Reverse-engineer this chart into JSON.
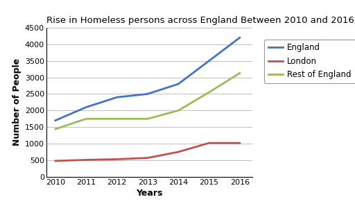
{
  "title": "Rise in Homeless persons across England Between 2010 and 2016",
  "xlabel": "Years",
  "ylabel": "Number of People",
  "years": [
    2010,
    2011,
    2012,
    2013,
    2014,
    2015,
    2016
  ],
  "england": [
    1700,
    2100,
    2400,
    2500,
    2800,
    3500,
    4200
  ],
  "london": [
    480,
    510,
    530,
    570,
    750,
    1020,
    1020
  ],
  "rest_of_england": [
    1440,
    1750,
    1750,
    1750,
    2000,
    2550,
    3130
  ],
  "england_color": "#4472C4",
  "london_color": "#C0504D",
  "rest_color": "#9BBB59",
  "ylim": [
    0,
    4500
  ],
  "yticks": [
    0,
    500,
    1000,
    1500,
    2000,
    2500,
    3000,
    3500,
    4000,
    4500
  ],
  "title_fontsize": 9.5,
  "axis_label_fontsize": 9,
  "legend_fontsize": 8.5,
  "tick_fontsize": 8,
  "linewidth": 2.0,
  "bg_color": "#FFFFFF",
  "grid_color": "#C0C0C0"
}
